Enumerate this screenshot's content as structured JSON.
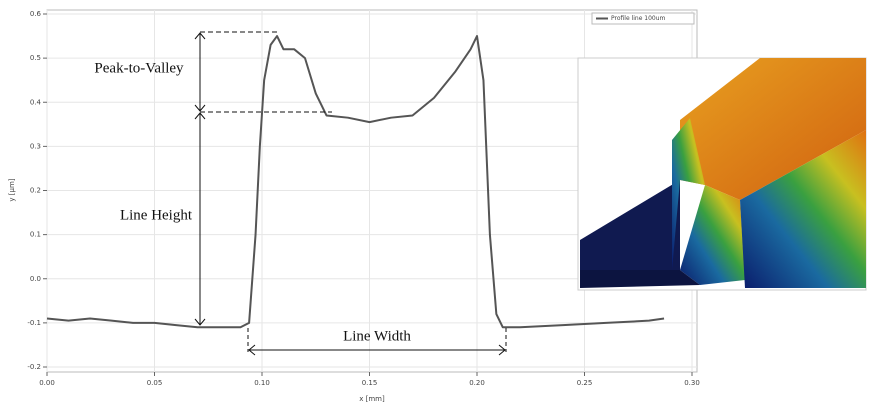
{
  "chart_data": {
    "type": "line",
    "x_label": "x [mm]",
    "y_label": "y [µm]",
    "annotations": {
      "peak_to_valley": "Peak-to-Valley",
      "line_height": "Line Height",
      "line_width": "Line Width"
    },
    "x": [
      0,
      0.01,
      0.02,
      0.03,
      0.04,
      0.05,
      0.06,
      0.07,
      0.08,
      0.09,
      0.094,
      0.097,
      0.099,
      0.101,
      0.104,
      0.107,
      0.11,
      0.115,
      0.12,
      0.125,
      0.13,
      0.14,
      0.15,
      0.16,
      0.17,
      0.18,
      0.19,
      0.197,
      0.2,
      0.203,
      0.206,
      0.209,
      0.212,
      0.22,
      0.24,
      0.26,
      0.28,
      0.287
    ],
    "series": [
      {
        "name": "Profile line 100um",
        "color": "#555555",
        "values": [
          -0.09,
          -0.095,
          -0.09,
          -0.095,
          -0.1,
          -0.1,
          -0.105,
          -0.11,
          -0.11,
          -0.11,
          -0.1,
          0.1,
          0.3,
          0.45,
          0.53,
          0.55,
          0.52,
          0.52,
          0.5,
          0.42,
          0.37,
          0.365,
          0.355,
          0.365,
          0.37,
          0.41,
          0.47,
          0.52,
          0.55,
          0.45,
          0.1,
          -0.08,
          -0.11,
          -0.11,
          -0.105,
          -0.1,
          -0.095,
          -0.09
        ]
      }
    ],
    "xlim": [
      0,
      0.3
    ],
    "xticks": [
      {
        "value": 0,
        "label": "0.00"
      },
      {
        "value": 0.05,
        "label": "0.05"
      },
      {
        "value": 0.1,
        "label": "0.10"
      },
      {
        "value": 0.15,
        "label": "0.15"
      },
      {
        "value": 0.2,
        "label": "0.20"
      },
      {
        "value": 0.25,
        "label": "0.25"
      },
      {
        "value": 0.3,
        "label": "0.30"
      }
    ],
    "ylim": [
      -0.2,
      0.6
    ],
    "yticks": [
      -0.2,
      -0.1,
      {
        "value": 0,
        "label": "0.0"
      },
      0.1,
      0.2,
      0.3,
      0.4,
      0.5,
      0.6
    ],
    "grid": true
  }
}
